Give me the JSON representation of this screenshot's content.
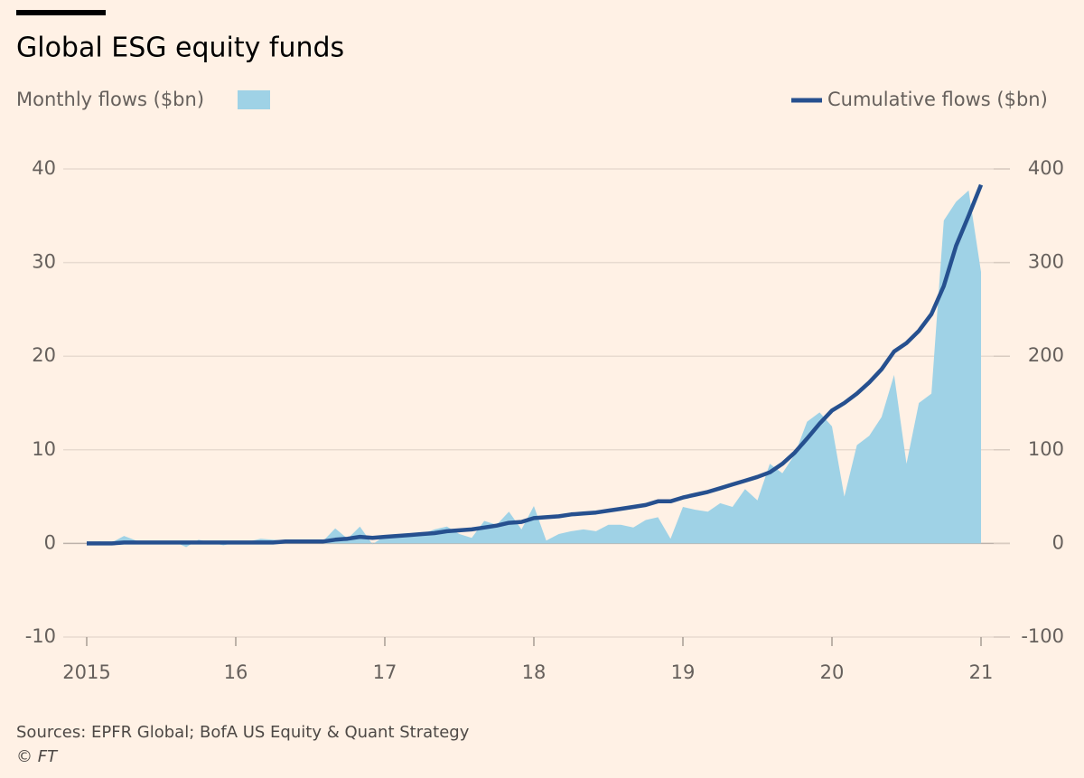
{
  "chart_data": {
    "type": "area_line",
    "title": "Global ESG equity funds",
    "source": "Sources: EPFR Global; BofA US Equity & Quant Strategy",
    "credit": "© FT",
    "x": [
      2015,
      2015.083,
      2015.167,
      2015.25,
      2015.333,
      2015.417,
      2015.5,
      2015.583,
      2015.667,
      2015.75,
      2015.833,
      2015.917,
      2016,
      2016.083,
      2016.167,
      2016.25,
      2016.333,
      2016.417,
      2016.5,
      2016.583,
      2016.667,
      2016.75,
      2016.833,
      2016.917,
      2017,
      2017.083,
      2017.167,
      2017.25,
      2017.333,
      2017.417,
      2017.5,
      2017.583,
      2017.667,
      2017.75,
      2017.833,
      2017.917,
      2018,
      2018.083,
      2018.167,
      2018.25,
      2018.333,
      2018.417,
      2018.5,
      2018.583,
      2018.667,
      2018.75,
      2018.833,
      2018.917,
      2019,
      2019.083,
      2019.167,
      2019.25,
      2019.333,
      2019.417,
      2019.5,
      2019.583,
      2019.667,
      2019.75,
      2019.833,
      2019.917,
      2020,
      2020.083,
      2020.167,
      2020.25,
      2020.333,
      2020.417,
      2020.5,
      2020.583,
      2020.667,
      2020.75,
      2020.833,
      2020.917,
      2021
    ],
    "series": [
      {
        "name": "Monthly flows ($bn)",
        "color": "#9fd2e6",
        "axis": "y",
        "values": [
          0,
          0.2,
          0.1,
          0.8,
          0.3,
          0.2,
          0.1,
          0.2,
          -0.4,
          0.4,
          0.1,
          -0.2,
          0.1,
          0.2,
          0.5,
          0.4,
          0.3,
          0.2,
          0.3,
          0.2,
          1.6,
          0.5,
          1.8,
          -0.1,
          0.8,
          0.7,
          0.8,
          1.0,
          1.5,
          1.8,
          1.0,
          0.6,
          2.4,
          2.0,
          3.4,
          1.5,
          4.0,
          0.3,
          1.0,
          1.3,
          1.5,
          1.3,
          2.0,
          2.0,
          1.7,
          2.5,
          2.8,
          0.5,
          3.9,
          3.6,
          3.4,
          4.3,
          3.9,
          5.8,
          4.6,
          8.5,
          7.5,
          9.5,
          13.0,
          14.0,
          12.5,
          5.0,
          10.5,
          11.5,
          13.5,
          18.0,
          8.5,
          15.0,
          16.0,
          34.5,
          36.5,
          37.7,
          29.0
        ]
      },
      {
        "name": "Cumulative flows ($bn)",
        "color": "#26508f",
        "axis": "y2",
        "values": [
          0,
          0,
          0,
          1,
          1,
          1,
          1,
          1,
          1,
          1,
          1,
          1,
          1,
          1,
          1,
          1,
          2,
          2,
          2,
          2,
          4,
          5,
          7,
          6,
          7,
          8,
          9,
          10,
          11,
          13,
          14,
          15,
          17,
          19,
          22,
          23,
          27,
          28,
          29,
          31,
          32,
          33,
          35,
          37,
          39,
          41,
          45,
          45,
          49,
          52,
          55,
          59,
          63,
          67,
          71,
          76,
          85,
          97,
          112,
          128,
          142,
          150,
          160,
          172,
          186,
          205,
          214,
          227,
          245,
          275,
          318,
          350,
          383
        ]
      }
    ],
    "xlim": [
      2015,
      2021
    ],
    "xticks": [
      {
        "value": 2015,
        "label": "2015"
      },
      {
        "value": 2016,
        "label": "16"
      },
      {
        "value": 2017,
        "label": "17"
      },
      {
        "value": 2018,
        "label": "18"
      },
      {
        "value": 2019,
        "label": "19"
      },
      {
        "value": 2020,
        "label": "20"
      },
      {
        "value": 2021,
        "label": "21"
      }
    ],
    "ylim": [
      -10,
      40
    ],
    "yticks": [
      -10,
      0,
      10,
      20,
      30,
      40
    ],
    "y2lim": [
      -100,
      400
    ],
    "y2ticks": [
      -100,
      0,
      100,
      200,
      300,
      400
    ],
    "grid": true
  }
}
